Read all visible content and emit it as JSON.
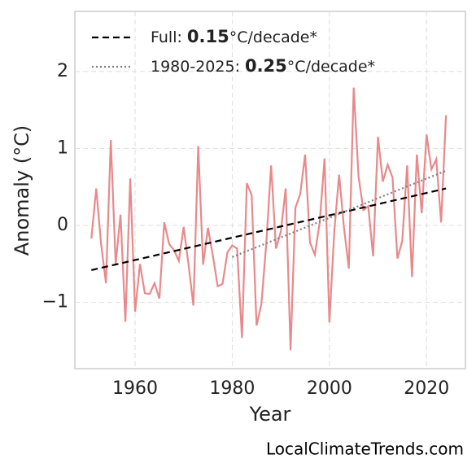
{
  "chart_data": {
    "type": "line",
    "xlabel": "Year",
    "ylabel": "Anomaly (°C)",
    "source": "LocalClimateTrends.com",
    "xlim": [
      1947.6,
      2028.0
    ],
    "ylim": [
      -1.86,
      2.78
    ],
    "xticks": [
      1960,
      1980,
      2000,
      2020
    ],
    "yticks": [
      {
        "value": -1,
        "label": "−1"
      },
      0,
      1,
      2
    ],
    "grid": true,
    "legend": "upper left",
    "series": [
      {
        "color": "#e8898b",
        "style": "solid",
        "x": [
          1951,
          1952,
          1953,
          1954,
          1955,
          1956,
          1957,
          1958,
          1959,
          1960,
          1961,
          1962,
          1963,
          1964,
          1965,
          1966,
          1967,
          1968,
          1969,
          1970,
          1971,
          1972,
          1973,
          1974,
          1975,
          1976,
          1977,
          1978,
          1979,
          1980,
          1981,
          1982,
          1983,
          1984,
          1985,
          1986,
          1987,
          1988,
          1989,
          1990,
          1991,
          1992,
          1993,
          1994,
          1995,
          1996,
          1997,
          1998,
          1999,
          2000,
          2001,
          2002,
          2003,
          2004,
          2005,
          2006,
          2007,
          2008,
          2009,
          2010,
          2011,
          2012,
          2013,
          2014,
          2015,
          2016,
          2017,
          2018,
          2019,
          2020,
          2021,
          2022,
          2023,
          2024
        ],
        "values": [
          -0.17,
          0.48,
          -0.24,
          -0.75,
          1.11,
          -0.5,
          0.14,
          -1.25,
          0.61,
          -1.12,
          -0.5,
          -0.88,
          -0.89,
          -0.75,
          -0.95,
          0.04,
          -0.24,
          -0.32,
          -0.46,
          -0.02,
          -0.51,
          -1.04,
          1.03,
          -0.51,
          -0.03,
          -0.39,
          -0.79,
          -0.76,
          -0.35,
          -0.26,
          -0.3,
          -1.46,
          0.55,
          0.39,
          -1.3,
          -1.02,
          -0.24,
          0.78,
          -0.3,
          -0.08,
          0.48,
          -1.62,
          0.23,
          0.41,
          0.92,
          -0.22,
          -0.38,
          0.04,
          0.87,
          -1.26,
          -0.08,
          0.66,
          -0.03,
          -0.56,
          1.79,
          0.63,
          0.2,
          0.25,
          -0.4,
          1.15,
          0.57,
          0.79,
          0.62,
          -0.43,
          -0.2,
          0.78,
          -0.67,
          0.92,
          0.16,
          1.18,
          0.73,
          0.86,
          0.04,
          1.43
        ]
      },
      {
        "name": "Full:",
        "rate": 0.15,
        "unit": "°C/decade*",
        "color": "#000000",
        "style": "dashed",
        "x": [
          1951,
          2024
        ],
        "values": [
          -0.58,
          0.48
        ]
      },
      {
        "name": "1980-2025:",
        "rate": 0.25,
        "unit": "°C/decade*",
        "color": "#808080",
        "style": "dotted",
        "x": [
          1980,
          2024
        ],
        "values": [
          -0.41,
          0.71
        ]
      }
    ]
  }
}
